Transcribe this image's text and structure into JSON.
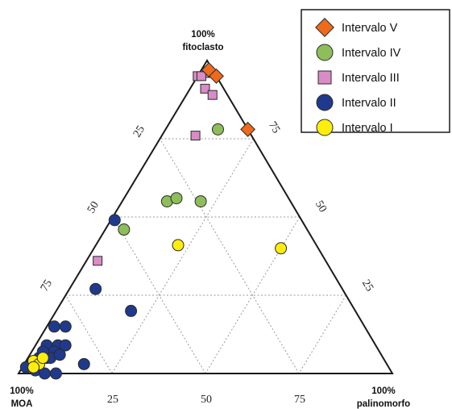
{
  "chart_data": {
    "type": "scatter",
    "subtype": "ternary",
    "corners": {
      "top": [
        "100%",
        "fitoclasto"
      ],
      "left": [
        "100%",
        "MOA"
      ],
      "right": [
        "100%",
        "palinomorfo"
      ]
    },
    "tick_labels": [
      "25",
      "50",
      "75"
    ],
    "grid": true,
    "legend_position": "top-right",
    "series": [
      {
        "name": "Intervalo V",
        "marker": "diamond",
        "color": "#ee6a1c",
        "points": [
          {
            "moa": 1,
            "fitoclasto": 97,
            "palinomorfo": 2
          },
          {
            "moa": 0,
            "fitoclasto": 95,
            "palinomorfo": 5
          },
          {
            "moa": 0,
            "fitoclasto": 78,
            "palinomorfo": 22
          }
        ]
      },
      {
        "name": "Intervalo IV",
        "marker": "circle",
        "color": "#8dbe5a",
        "points": [
          {
            "moa": 8,
            "fitoclasto": 78,
            "palinomorfo": 14
          },
          {
            "moa": 33,
            "fitoclasto": 55,
            "palinomorfo": 12
          },
          {
            "moa": 30,
            "fitoclasto": 56,
            "palinomorfo": 14
          },
          {
            "moa": 24,
            "fitoclasto": 55,
            "palinomorfo": 21
          },
          {
            "moa": 49,
            "fitoclasto": 46,
            "palinomorfo": 5
          }
        ]
      },
      {
        "name": "Intervalo III",
        "marker": "square",
        "color": "#d98cc6",
        "points": [
          {
            "moa": 5,
            "fitoclasto": 95,
            "palinomorfo": 0
          },
          {
            "moa": 2,
            "fitoclasto": 96,
            "palinomorfo": 2
          },
          {
            "moa": 4,
            "fitoclasto": 95,
            "palinomorfo": 1
          },
          {
            "moa": 5,
            "fitoclasto": 91,
            "palinomorfo": 4
          },
          {
            "moa": 4,
            "fitoclasto": 89,
            "palinomorfo": 7
          },
          {
            "moa": 15,
            "fitoclasto": 76,
            "palinomorfo": 9
          },
          {
            "moa": 61,
            "fitoclasto": 36,
            "palinomorfo": 3
          }
        ]
      },
      {
        "name": "Intervalo II",
        "marker": "circle",
        "color": "#1f3a8c",
        "points": [
          {
            "moa": 50,
            "fitoclasto": 49,
            "palinomorfo": 1
          },
          {
            "moa": 66,
            "fitoclasto": 27,
            "palinomorfo": 7
          },
          {
            "moa": 60,
            "fitoclasto": 20,
            "palinomorfo": 20
          },
          {
            "moa": 83,
            "fitoclasto": 15,
            "palinomorfo": 2
          },
          {
            "moa": 80,
            "fitoclasto": 15,
            "palinomorfo": 5
          },
          {
            "moa": 85,
            "fitoclasto": 9,
            "palinomorfo": 6
          },
          {
            "moa": 88,
            "fitoclasto": 9,
            "palinomorfo": 3
          },
          {
            "moa": 87,
            "fitoclasto": 7,
            "palinomorfo": 6
          },
          {
            "moa": 83,
            "fitoclasto": 9,
            "palinomorfo": 8
          },
          {
            "moa": 90,
            "fitoclasto": 5,
            "palinomorfo": 5
          },
          {
            "moa": 89,
            "fitoclasto": 5,
            "palinomorfo": 6
          },
          {
            "moa": 92,
            "fitoclasto": 5,
            "palinomorfo": 3
          },
          {
            "moa": 95,
            "fitoclasto": 3,
            "palinomorfo": 2
          },
          {
            "moa": 97,
            "fitoclasto": 2,
            "palinomorfo": 1
          },
          {
            "moa": 95,
            "fitoclasto": 1,
            "palinomorfo": 4
          },
          {
            "moa": 93,
            "fitoclasto": 0,
            "palinomorfo": 7
          },
          {
            "moa": 90,
            "fitoclasto": 0,
            "palinomorfo": 10
          },
          {
            "moa": 81,
            "fitoclasto": 3,
            "palinomorfo": 16
          },
          {
            "moa": 86,
            "fitoclasto": 6,
            "palinomorfo": 8
          },
          {
            "moa": 90,
            "fitoclasto": 7,
            "palinomorfo": 3
          }
        ]
      },
      {
        "name": "Intervalo I",
        "marker": "circle",
        "color": "#ffee0a",
        "points": [
          {
            "moa": 37,
            "fitoclasto": 41,
            "palinomorfo": 22
          },
          {
            "moa": 10,
            "fitoclasto": 40,
            "palinomorfo": 50
          },
          {
            "moa": 94,
            "fitoclasto": 4,
            "palinomorfo": 2
          },
          {
            "moa": 93,
            "fitoclasto": 3,
            "palinomorfo": 4
          },
          {
            "moa": 95,
            "fitoclasto": 2,
            "palinomorfo": 3
          },
          {
            "moa": 91,
            "fitoclasto": 5,
            "palinomorfo": 4
          }
        ]
      }
    ],
    "legend_order": [
      "Intervalo V",
      "Intervalo IV",
      "Intervalo III",
      "Intervalo II",
      "Intervalo I"
    ]
  }
}
